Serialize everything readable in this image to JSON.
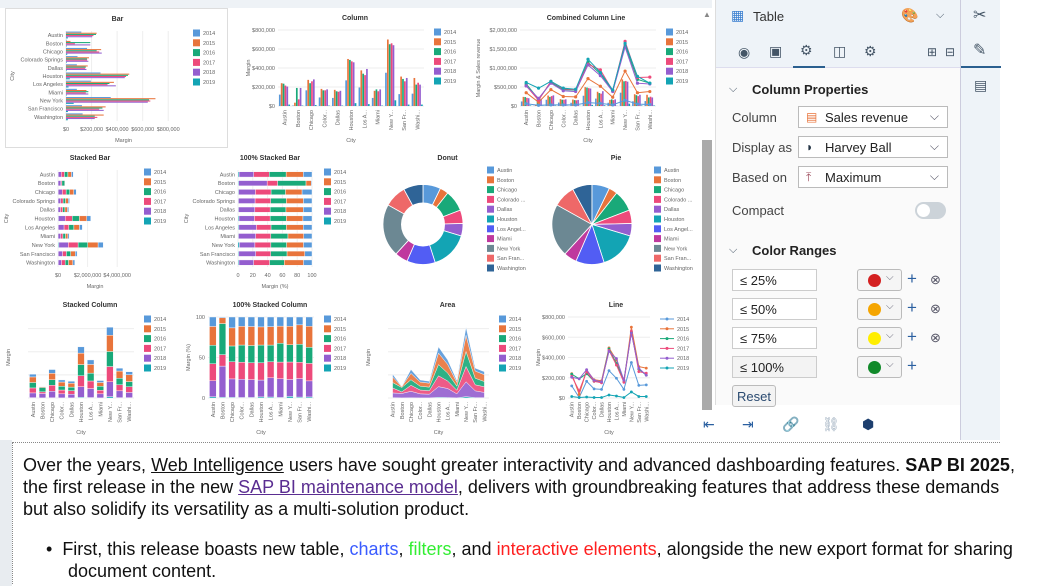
{
  "panel": {
    "object_type": "Table",
    "tabs": [
      "view",
      "image",
      "format",
      "layout",
      "advanced"
    ],
    "column_properties": {
      "title": "Column Properties",
      "column_label": "Column",
      "column_value": "Sales revenue",
      "display_label": "Display as",
      "display_value": "Harvey Ball",
      "based_label": "Based on",
      "based_value": "Maximum",
      "compact_label": "Compact",
      "compact_on": false
    },
    "color_ranges": {
      "title": "Color Ranges",
      "ranges": [
        {
          "label": "≤ 25%",
          "color": "#d42020"
        },
        {
          "label": "≤ 50%",
          "color": "#f5a500"
        },
        {
          "label": "≤ 75%",
          "color": "#ffee00"
        },
        {
          "label": "≤ 100%",
          "color": "#118a2a"
        }
      ],
      "reset": "Reset"
    }
  },
  "doc": {
    "p1a": "Over the years, ",
    "p1link": "Web Intelligence",
    "p1b": " users have sought greater interactivity and advanced dashboarding features. ",
    "p1bold": "SAP BI 2025",
    "p2a": "the first release in the new ",
    "p2link": "SAP BI maintenance model",
    "p2b": ", delivers with groundbreaking features that address these demands",
    "p3": "but also solidify its versatility as a multi-solution product.",
    "b1a": "First, this release boasts new table, ",
    "b1charts": "charts",
    "b1c": ", ",
    "b1filters": "filters",
    "b1d": ", and ",
    "b1inter": "interactive elements",
    "b1e": ", alongside the new export format for sharing",
    "b2": "document content.",
    "colors": {
      "charts": "#3a5cff",
      "filters": "#33ee33",
      "interactive": "#ff2020"
    }
  },
  "chart_data": {
    "cities": [
      "Austin",
      "Boston",
      "Chicago",
      "Colorado Springs",
      "Dallas",
      "Houston",
      "Los Angeles",
      "Miami",
      "New York",
      "San Francisco",
      "Washington"
    ],
    "cities_short": [
      "Austin",
      "Boston",
      "Chicago",
      "Color...",
      "Dallas",
      "Houston",
      "Los A...",
      "Miami",
      "New Y...",
      "San Fr...",
      "Washi..."
    ],
    "cities_legend": [
      "Austin",
      "Boston",
      "Chicago",
      "Colorado ...",
      "Dallas",
      "Houston",
      "Los Angel...",
      "Miami",
      "New York",
      "San Fran...",
      "Washington"
    ],
    "years": [
      "2014",
      "2015",
      "2016",
      "2017",
      "2018",
      "2019"
    ],
    "year_colors": [
      "#5899DA",
      "#E8743B",
      "#19A979",
      "#ED4A7B",
      "#945ECF",
      "#13A4B4"
    ],
    "city_colors": [
      "#5899DA",
      "#E8743B",
      "#19A979",
      "#ED4A7B",
      "#945ECF",
      "#13A4B4",
      "#525DF4",
      "#BF399E",
      "#6C8893",
      "#EE6868",
      "#2F6497"
    ],
    "margin": [
      [
        120000,
        5000,
        165000,
        90000,
        85000,
        270000,
        195000,
        85000,
        350000,
        125000,
        130000
      ],
      [
        240000,
        35000,
        275000,
        180000,
        170000,
        495000,
        375000,
        160000,
        700000,
        310000,
        295000
      ],
      [
        235000,
        190000,
        240000,
        165000,
        155000,
        485000,
        340000,
        175000,
        650000,
        285000,
        225000
      ],
      [
        215000,
        70000,
        260000,
        165000,
        150000,
        470000,
        325000,
        155000,
        660000,
        260000,
        245000
      ],
      [
        205000,
        190000,
        280000,
        175000,
        160000,
        460000,
        390000,
        175000,
        640000,
        295000,
        225000
      ],
      [
        15000,
        5000,
        10000,
        5000,
        5000,
        30000,
        20000,
        5000,
        60000,
        15000,
        15000
      ]
    ],
    "sales_revenue": [
      [
        60000,
        20000,
        30000,
        30000,
        30000,
        90000,
        70000,
        30000,
        150000,
        50000,
        40000
      ],
      [
        350000,
        100000,
        430000,
        250000,
        240000,
        720000,
        520000,
        230000,
        920000,
        350000,
        380000
      ],
      [
        580000,
        180000,
        620000,
        430000,
        420000,
        1150000,
        850000,
        400000,
        1600000,
        700000,
        600000
      ],
      [
        530000,
        150000,
        650000,
        450000,
        430000,
        1100000,
        950000,
        400000,
        1700000,
        750000,
        760000
      ],
      [
        530000,
        200000,
        600000,
        400000,
        380000,
        1080000,
        800000,
        380000,
        1550000,
        600000,
        580000
      ],
      [
        620000,
        470000,
        650000,
        470000,
        440000,
        1230000,
        880000,
        420000,
        1650000,
        780000,
        600000
      ]
    ],
    "charts": [
      {
        "type": "bar",
        "title": "Bar",
        "xlabel": "Margin",
        "ylabel": "City",
        "max": 900000,
        "ticks": [
          0,
          200000,
          400000,
          600000,
          800000
        ],
        "tick_labels": [
          "$0",
          "$200,000",
          "$400,000",
          "$600,000",
          "$800,000"
        ]
      },
      {
        "type": "column",
        "title": "Column",
        "xlabel": "City",
        "ylabel": "Margin",
        "max": 800000,
        "ticks": [
          0,
          200000,
          400000,
          600000,
          800000
        ],
        "tick_labels": [
          "$0",
          "$200,000",
          "$400,000",
          "$600,000",
          "$800,000"
        ]
      },
      {
        "type": "combined",
        "title": "Combined Column Line",
        "xlabel": "City",
        "ylabel": "Margin & Sales revenue",
        "max": 2000000,
        "ticks": [
          0,
          500000,
          1000000,
          1500000,
          2000000
        ],
        "tick_labels": [
          "$0",
          "$500,000",
          "$1,000,000",
          "$1,500,000",
          "$2,000,000"
        ]
      },
      {
        "type": "stacked_bar",
        "title": "Stacked Bar",
        "xlabel": "Margin",
        "ylabel": "City",
        "max": 5000000,
        "ticks": [
          0,
          2000000,
          4000000
        ],
        "tick_labels": [
          "$0",
          "$2,000,000",
          "$4,000,000"
        ]
      },
      {
        "type": "pct_bar",
        "title": "100% Stacked Bar",
        "xlabel": "Margin (%)",
        "ylabel": "City",
        "max": 100,
        "ticks": [
          0,
          20,
          40,
          60,
          80,
          100
        ],
        "tick_labels": [
          "0",
          "20",
          "40",
          "60",
          "80",
          "100"
        ]
      },
      {
        "type": "donut",
        "title": "Donut"
      },
      {
        "type": "pie",
        "title": "Pie"
      },
      {
        "type": "stacked_column",
        "title": "Stacked Column",
        "xlabel": "City",
        "ylabel": "Margin",
        "max": 3500000,
        "ticks": [
          0,
          1000000,
          2000000,
          3000000
        ],
        "tick_labels": []
      },
      {
        "type": "pct_column",
        "title": "100% Stacked Column",
        "xlabel": "City",
        "ylabel": "Margin (%)",
        "max": 100,
        "ticks": [
          0,
          50,
          100
        ],
        "tick_labels": [
          "0",
          "50",
          "100"
        ]
      },
      {
        "type": "area",
        "title": "Area",
        "xlabel": "City",
        "ylabel": "Margin",
        "max": 3500000,
        "ticks": [
          0,
          1000000,
          2000000,
          3000000
        ],
        "tick_labels": []
      },
      {
        "type": "line",
        "title": "Line",
        "xlabel": "City",
        "ylabel": "Margin",
        "max": 800000,
        "ticks": [
          0,
          200000,
          400000,
          600000,
          800000
        ],
        "tick_labels": [
          "$0",
          "$200,000",
          "$400,000",
          "$600,000",
          "$800,000"
        ]
      }
    ]
  }
}
